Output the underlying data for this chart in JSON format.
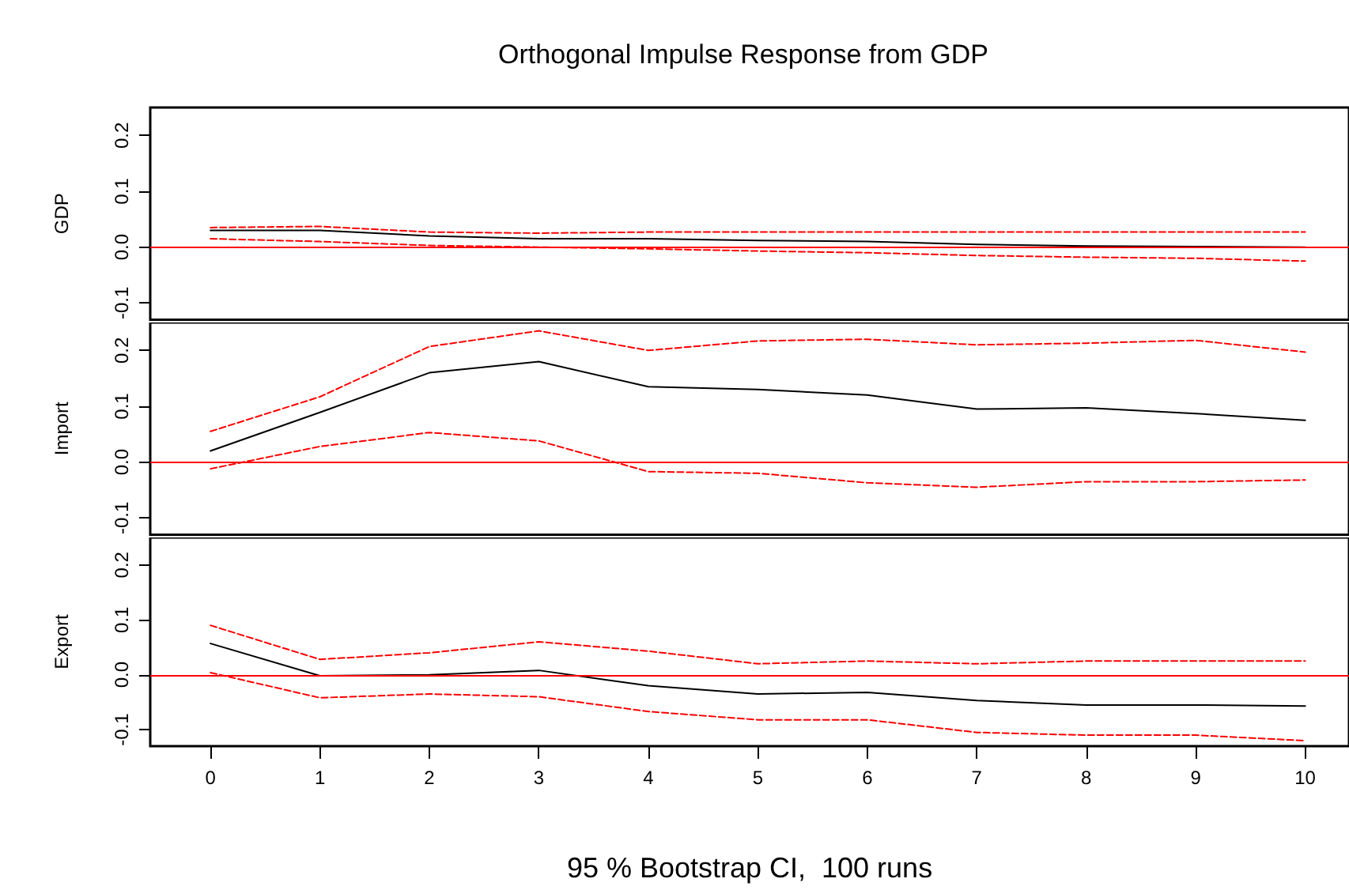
{
  "chart_data": [
    {
      "type": "line",
      "title": "Orthogonal Impulse Response from GDP",
      "ylabel": "GDP",
      "x": [
        0,
        1,
        2,
        3,
        4,
        5,
        6,
        7,
        8,
        9,
        10
      ],
      "xlim": [
        -0.55,
        10.4
      ],
      "ylim": [
        -0.13,
        0.25
      ],
      "yticks": [
        {
          "value": -0.1,
          "label": "-0.1"
        },
        {
          "value": 0,
          "label": "0.0"
        },
        {
          "value": 0.1,
          "label": "0.1"
        },
        {
          "value": 0.2,
          "label": "0.2"
        }
      ],
      "tick_labels": "y",
      "grid": false,
      "marker": "none",
      "ref_lines": [
        {
          "axis": "y",
          "value": 0,
          "color": "#ff0000",
          "line_style": "solid"
        }
      ],
      "series": [
        {
          "color": "#ff0000",
          "line_style": "dashed",
          "values": [
            0.035,
            0.037,
            0.027,
            0.025,
            0.027,
            0.027,
            0.027,
            0.027,
            0.027,
            0.027,
            0.027
          ]
        },
        {
          "color": "#000000",
          "line_style": "solid",
          "values": [
            0.03,
            0.03,
            0.02,
            0.015,
            0.015,
            0.012,
            0.01,
            0.005,
            0.002,
            0.001,
            0
          ]
        },
        {
          "color": "#ff0000",
          "line_style": "dashed",
          "values": [
            0.015,
            0.01,
            0.003,
            0,
            -0.003,
            -0.007,
            -0.01,
            -0.015,
            -0.018,
            -0.02,
            -0.025
          ]
        }
      ]
    },
    {
      "type": "line",
      "ylabel": "Import",
      "x": [
        0,
        1,
        2,
        3,
        4,
        5,
        6,
        7,
        8,
        9,
        10
      ],
      "xlim": [
        -0.55,
        10.4
      ],
      "ylim": [
        -0.13,
        0.25
      ],
      "yticks": [
        {
          "value": -0.1,
          "label": "-0.1"
        },
        {
          "value": 0,
          "label": "0.0"
        },
        {
          "value": 0.1,
          "label": "0.1"
        },
        {
          "value": 0.2,
          "label": "0.2"
        }
      ],
      "tick_labels": "y",
      "grid": false,
      "marker": "none",
      "ref_lines": [
        {
          "axis": "y",
          "value": 0,
          "color": "#ff0000",
          "line_style": "solid"
        }
      ],
      "series": [
        {
          "color": "#ff0000",
          "line_style": "dashed",
          "values": [
            0.055,
            0.117,
            0.207,
            0.235,
            0.2,
            0.217,
            0.22,
            0.21,
            0.213,
            0.218,
            0.197
          ]
        },
        {
          "color": "#000000",
          "line_style": "solid",
          "values": [
            0.02,
            0.089,
            0.16,
            0.18,
            0.135,
            0.13,
            0.12,
            0.095,
            0.097,
            0.087,
            0.075
          ]
        },
        {
          "color": "#ff0000",
          "line_style": "dashed",
          "values": [
            -0.012,
            0.028,
            0.053,
            0.038,
            -0.017,
            -0.02,
            -0.037,
            -0.045,
            -0.035,
            -0.035,
            -0.032
          ]
        }
      ]
    },
    {
      "type": "line",
      "ylabel": "Export",
      "xlabel": "95 % Bootstrap CI,  100 runs",
      "x": [
        0,
        1,
        2,
        3,
        4,
        5,
        6,
        7,
        8,
        9,
        10
      ],
      "xlim": [
        -0.55,
        10.4
      ],
      "ylim": [
        -0.13,
        0.25
      ],
      "xticks": [
        0,
        1,
        2,
        3,
        4,
        5,
        6,
        7,
        8,
        9,
        10
      ],
      "yticks": [
        {
          "value": -0.1,
          "label": "-0.1"
        },
        {
          "value": 0,
          "label": "0.0"
        },
        {
          "value": 0.1,
          "label": "0.1"
        },
        {
          "value": 0.2,
          "label": "0.2"
        }
      ],
      "grid": false,
      "marker": "none",
      "ref_lines": [
        {
          "axis": "y",
          "value": 0,
          "color": "#ff0000",
          "line_style": "solid"
        }
      ],
      "series": [
        {
          "color": "#ff0000",
          "line_style": "dashed",
          "values": [
            0.09,
            0.028,
            0.04,
            0.06,
            0.043,
            0.02,
            0.025,
            0.02,
            0.025,
            0.025,
            0.025
          ]
        },
        {
          "color": "#000000",
          "line_style": "solid",
          "values": [
            0.057,
            -0.002,
            0,
            0.008,
            -0.02,
            -0.035,
            -0.032,
            -0.047,
            -0.055,
            -0.055,
            -0.057
          ]
        },
        {
          "color": "#ff0000",
          "line_style": "dashed",
          "values": [
            0.004,
            -0.042,
            -0.035,
            -0.04,
            -0.067,
            -0.082,
            -0.082,
            -0.105,
            -0.11,
            -0.11,
            -0.12
          ]
        }
      ]
    }
  ]
}
